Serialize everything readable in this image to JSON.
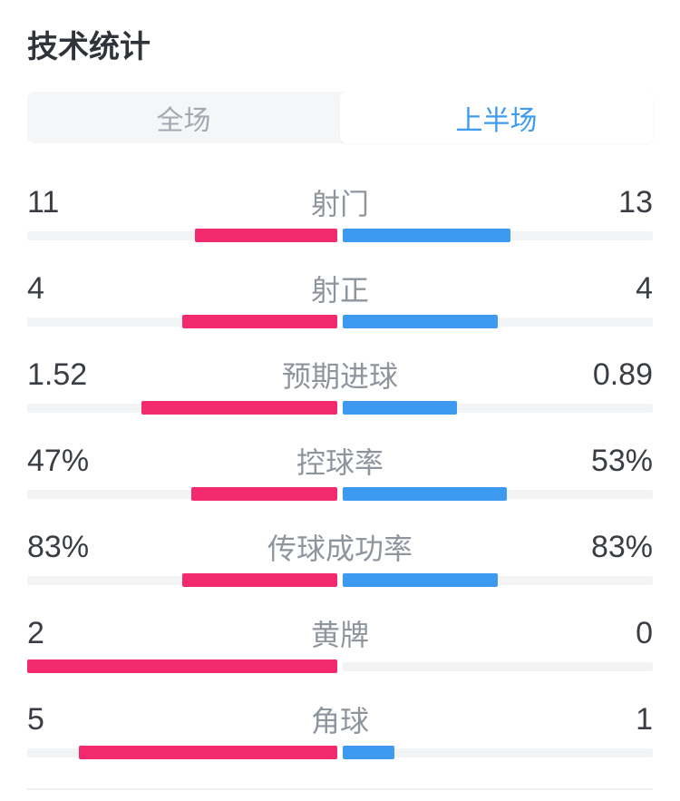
{
  "page": {
    "title": "技术统计"
  },
  "tabs": {
    "full_match": "全场",
    "first_half": "上半场",
    "selected": "上半场"
  },
  "colors": {
    "home_bar": "#f42a6e",
    "away_bar": "#3d9af0",
    "bar_track": "#f2f3f4",
    "tab_bar_bg": "#f4f6f8",
    "tab_active_text": "#3e9bf0",
    "tab_inactive_text": "#a3a9b0",
    "value_text": "#3a3e44",
    "label_text": "#8f959c"
  },
  "chart_data": {
    "type": "bar",
    "orientation": "horizontal-paired-comparison",
    "title": "技术统计",
    "selected_period": "上半场",
    "bar_rule": "each side bar width = value / (home+away) of its half-track, growing outward from center",
    "categories": [
      "射门",
      "射正",
      "预期进球",
      "控球率",
      "传球成功率",
      "黄牌",
      "角球"
    ],
    "series": [
      {
        "name": "home",
        "color": "#f42a6e",
        "values": [
          11,
          4,
          1.52,
          47,
          83,
          2,
          5
        ]
      },
      {
        "name": "away",
        "color": "#3d9af0",
        "values": [
          13,
          4,
          0.89,
          53,
          83,
          0,
          1
        ]
      }
    ],
    "rows": [
      {
        "label": "射门",
        "home": "11",
        "away": "13",
        "home_value": 11,
        "away_value": 13
      },
      {
        "label": "射正",
        "home": "4",
        "away": "4",
        "home_value": 4,
        "away_value": 4
      },
      {
        "label": "预期进球",
        "home": "1.52",
        "away": "0.89",
        "home_value": 1.52,
        "away_value": 0.89
      },
      {
        "label": "控球率",
        "home": "47%",
        "away": "53%",
        "home_value": 47,
        "away_value": 53
      },
      {
        "label": "传球成功率",
        "home": "83%",
        "away": "83%",
        "home_value": 83,
        "away_value": 83
      },
      {
        "label": "黄牌",
        "home": "2",
        "away": "0",
        "home_value": 2,
        "away_value": 0
      },
      {
        "label": "角球",
        "home": "5",
        "away": "1",
        "home_value": 5,
        "away_value": 1
      }
    ]
  }
}
